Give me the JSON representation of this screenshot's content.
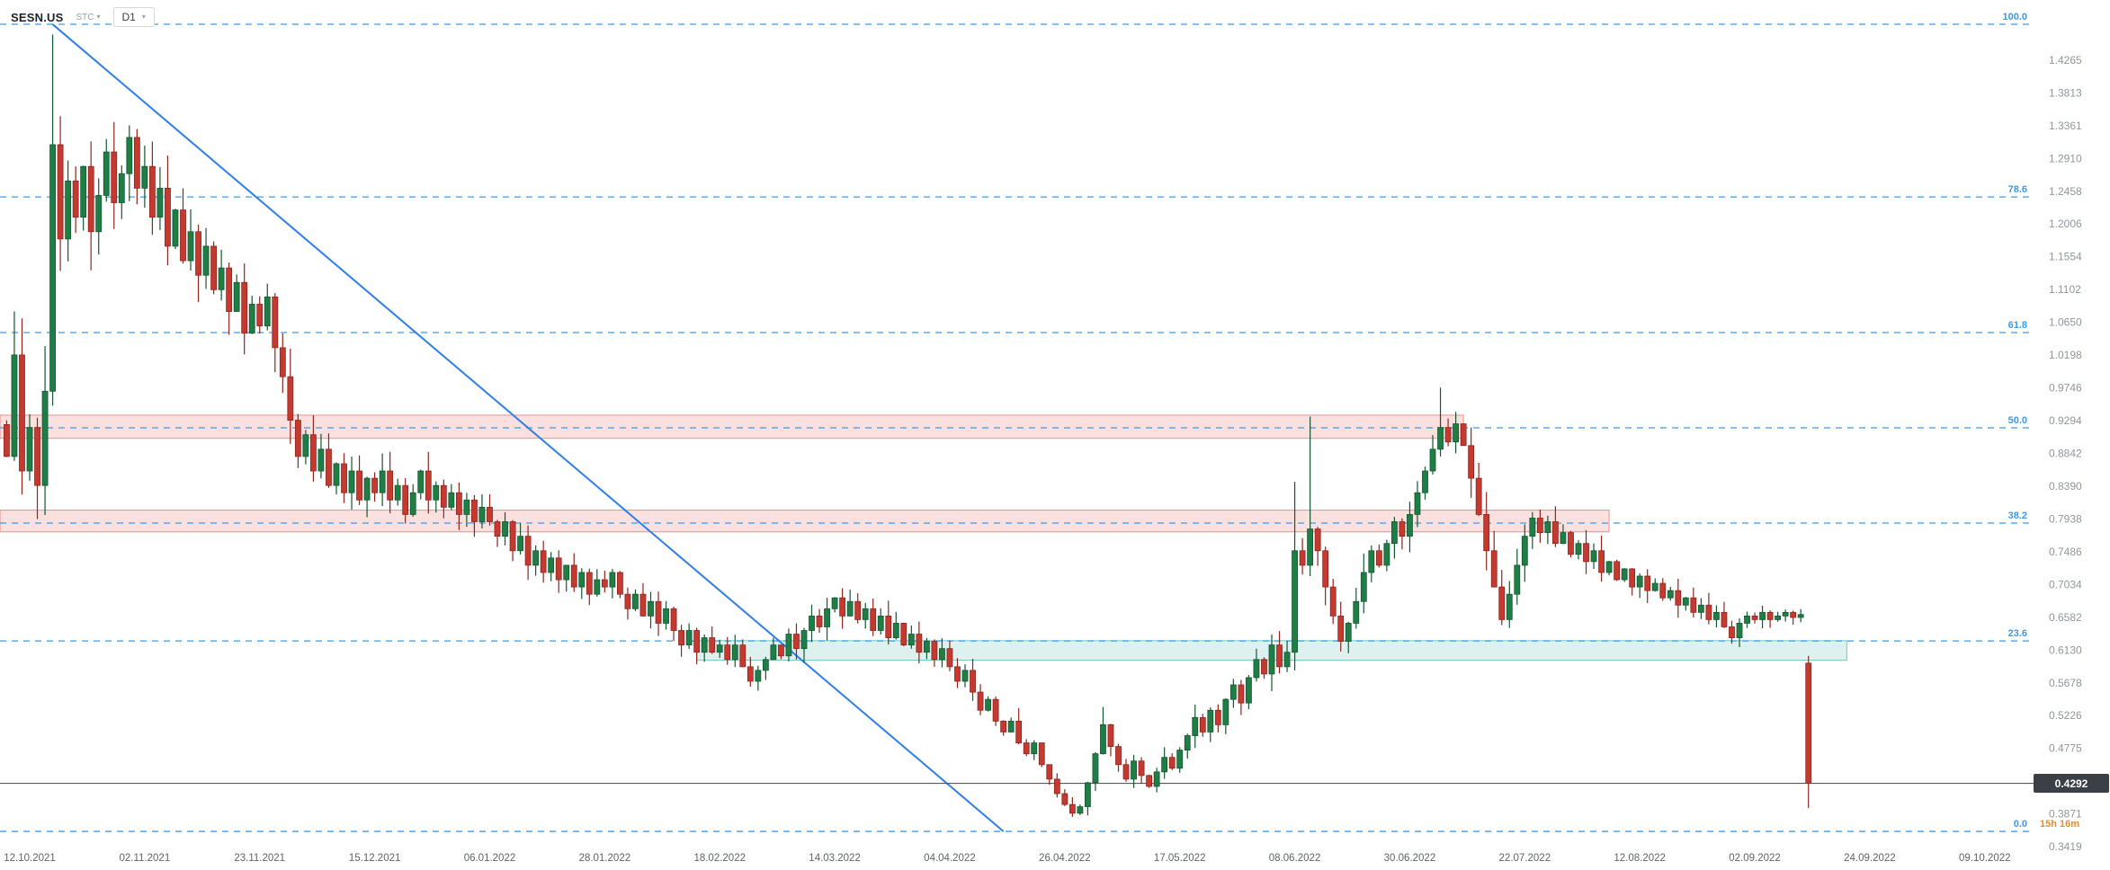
{
  "toolbar": {
    "symbol": "SESN.US",
    "provider": "STC",
    "timeframe": "D1"
  },
  "icons": {
    "chevron_down": "▾"
  },
  "price_badge": {
    "value": "0.4292"
  },
  "countdown": {
    "text": "15h 16m"
  },
  "colors": {
    "up": "#1e7e46",
    "up_stroke": "#14562f",
    "down": "#c43a30",
    "down_stroke": "#8f241d",
    "fib": "#3d9ae8",
    "trend": "#2d7fe8",
    "axis_text": "#8f969c",
    "date_text": "#5f6368",
    "price_line": "#55585c"
  },
  "chart_data": {
    "type": "candlestick",
    "symbol": "SESN.US",
    "timeframe": "D1",
    "current_price": 0.4292,
    "y_axis": {
      "ticks": [
        "1.4265",
        "1.3813",
        "1.3361",
        "1.2910",
        "1.2458",
        "1.2006",
        "1.1554",
        "1.1102",
        "1.0650",
        "1.0198",
        "0.9746",
        "0.9294",
        "0.8842",
        "0.8390",
        "0.7938",
        "0.7486",
        "0.7034",
        "0.6582",
        "0.6130",
        "0.5678",
        "0.5226",
        "0.4775",
        "0.3871",
        "0.3419"
      ]
    },
    "x_axis": {
      "ticks": [
        "12.10.2021",
        "02.11.2021",
        "23.11.2021",
        "15.12.2021",
        "06.01.2022",
        "28.01.2022",
        "18.02.2022",
        "14.03.2022",
        "04.04.2022",
        "26.04.2022",
        "17.05.2022",
        "08.06.2022",
        "30.06.2022",
        "22.07.2022",
        "12.08.2022",
        "02.09.2022",
        "24.09.2022",
        "09.10.2022"
      ],
      "candles_per_tick": 15
    },
    "first_index": -3,
    "closes": [
      0.88,
      1.02,
      0.86,
      0.92,
      0.84,
      0.97,
      1.31,
      1.18,
      1.26,
      1.21,
      1.28,
      1.19,
      1.24,
      1.3,
      1.23,
      1.27,
      1.32,
      1.25,
      1.28,
      1.21,
      1.25,
      1.17,
      1.22,
      1.15,
      1.19,
      1.13,
      1.17,
      1.11,
      1.14,
      1.08,
      1.12,
      1.05,
      1.09,
      1.06,
      1.1,
      1.03,
      0.99,
      0.93,
      0.88,
      0.91,
      0.86,
      0.89,
      0.84,
      0.87,
      0.83,
      0.86,
      0.82,
      0.85,
      0.83,
      0.86,
      0.82,
      0.84,
      0.8,
      0.83,
      0.86,
      0.82,
      0.84,
      0.81,
      0.83,
      0.8,
      0.82,
      0.79,
      0.81,
      0.79,
      0.77,
      0.79,
      0.75,
      0.77,
      0.73,
      0.75,
      0.72,
      0.74,
      0.71,
      0.73,
      0.7,
      0.72,
      0.69,
      0.71,
      0.7,
      0.72,
      0.69,
      0.67,
      0.69,
      0.66,
      0.68,
      0.65,
      0.67,
      0.64,
      0.62,
      0.64,
      0.61,
      0.63,
      0.61,
      0.62,
      0.6,
      0.62,
      0.59,
      0.57,
      0.585,
      0.6,
      0.62,
      0.605,
      0.635,
      0.615,
      0.64,
      0.66,
      0.645,
      0.67,
      0.685,
      0.66,
      0.68,
      0.655,
      0.67,
      0.64,
      0.66,
      0.63,
      0.65,
      0.62,
      0.635,
      0.61,
      0.625,
      0.6,
      0.615,
      0.59,
      0.57,
      0.585,
      0.555,
      0.53,
      0.545,
      0.515,
      0.5,
      0.515,
      0.485,
      0.47,
      0.485,
      0.455,
      0.435,
      0.415,
      0.4,
      0.388,
      0.397,
      0.43,
      0.47,
      0.51,
      0.48,
      0.455,
      0.435,
      0.46,
      0.44,
      0.425,
      0.445,
      0.465,
      0.45,
      0.475,
      0.495,
      0.52,
      0.5,
      0.53,
      0.51,
      0.545,
      0.565,
      0.54,
      0.575,
      0.6,
      0.58,
      0.62,
      0.59,
      0.61,
      0.75,
      0.73,
      0.78,
      0.75,
      0.7,
      0.66,
      0.625,
      0.65,
      0.68,
      0.72,
      0.75,
      0.73,
      0.76,
      0.79,
      0.77,
      0.8,
      0.83,
      0.86,
      0.89,
      0.92,
      0.9,
      0.925,
      0.895,
      0.85,
      0.8,
      0.75,
      0.7,
      0.655,
      0.69,
      0.73,
      0.77,
      0.795,
      0.775,
      0.79,
      0.76,
      0.775,
      0.745,
      0.76,
      0.735,
      0.75,
      0.72,
      0.735,
      0.71,
      0.725,
      0.7,
      0.715,
      0.695,
      0.705,
      0.685,
      0.695,
      0.675,
      0.685,
      0.665,
      0.675,
      0.655,
      0.665,
      0.645,
      0.63,
      0.65,
      0.66,
      0.655,
      0.665,
      0.655,
      0.66,
      0.665,
      0.658,
      0.662,
      0.4292
    ],
    "candle_overrides": {
      "6": [
        0.97,
        1.462,
        0.95,
        1.31
      ],
      "139": [
        0.4,
        0.41,
        0.383,
        0.388
      ],
      "168": [
        0.61,
        0.845,
        0.585,
        0.75
      ],
      "170": [
        0.73,
        0.935,
        0.715,
        0.78
      ],
      "187": [
        0.89,
        0.975,
        0.88,
        0.92
      ],
      "235": [
        0.595,
        0.605,
        0.395,
        0.4292
      ]
    },
    "fib_levels": [
      {
        "label": "100.0",
        "price": 1.4761
      },
      {
        "label": "78.6",
        "price": 1.2379
      },
      {
        "label": "61.8",
        "price": 1.0509
      },
      {
        "label": "50.0",
        "price": 0.9195
      },
      {
        "label": "38.2",
        "price": 0.7881
      },
      {
        "label": "23.6",
        "price": 0.6256
      },
      {
        "label": "0.0",
        "price": 0.3629
      }
    ],
    "zones": [
      {
        "name": "supply-zone-upper",
        "price_top": 0.937,
        "price_bottom": 0.905,
        "from_index": null,
        "to_index": 187,
        "fill": "rgba(231,101,94,0.20)",
        "stroke": "rgba(214,69,60,0.55)"
      },
      {
        "name": "supply-zone-lower",
        "price_top": 0.806,
        "price_bottom": 0.776,
        "from_index": null,
        "to_index": 206,
        "fill": "rgba(231,101,94,0.20)",
        "stroke": "rgba(214,69,60,0.55)"
      },
      {
        "name": "demand-zone",
        "price_top": 0.626,
        "price_bottom": 0.599,
        "from_index": 87,
        "to_index": 237,
        "fill": "rgba(64,181,166,0.18)",
        "stroke": "rgba(38,166,154,0.60)"
      }
    ],
    "trendline": {
      "from_index": 3,
      "from_price": 1.476,
      "to_index": 127,
      "to_price": 0.363
    }
  }
}
